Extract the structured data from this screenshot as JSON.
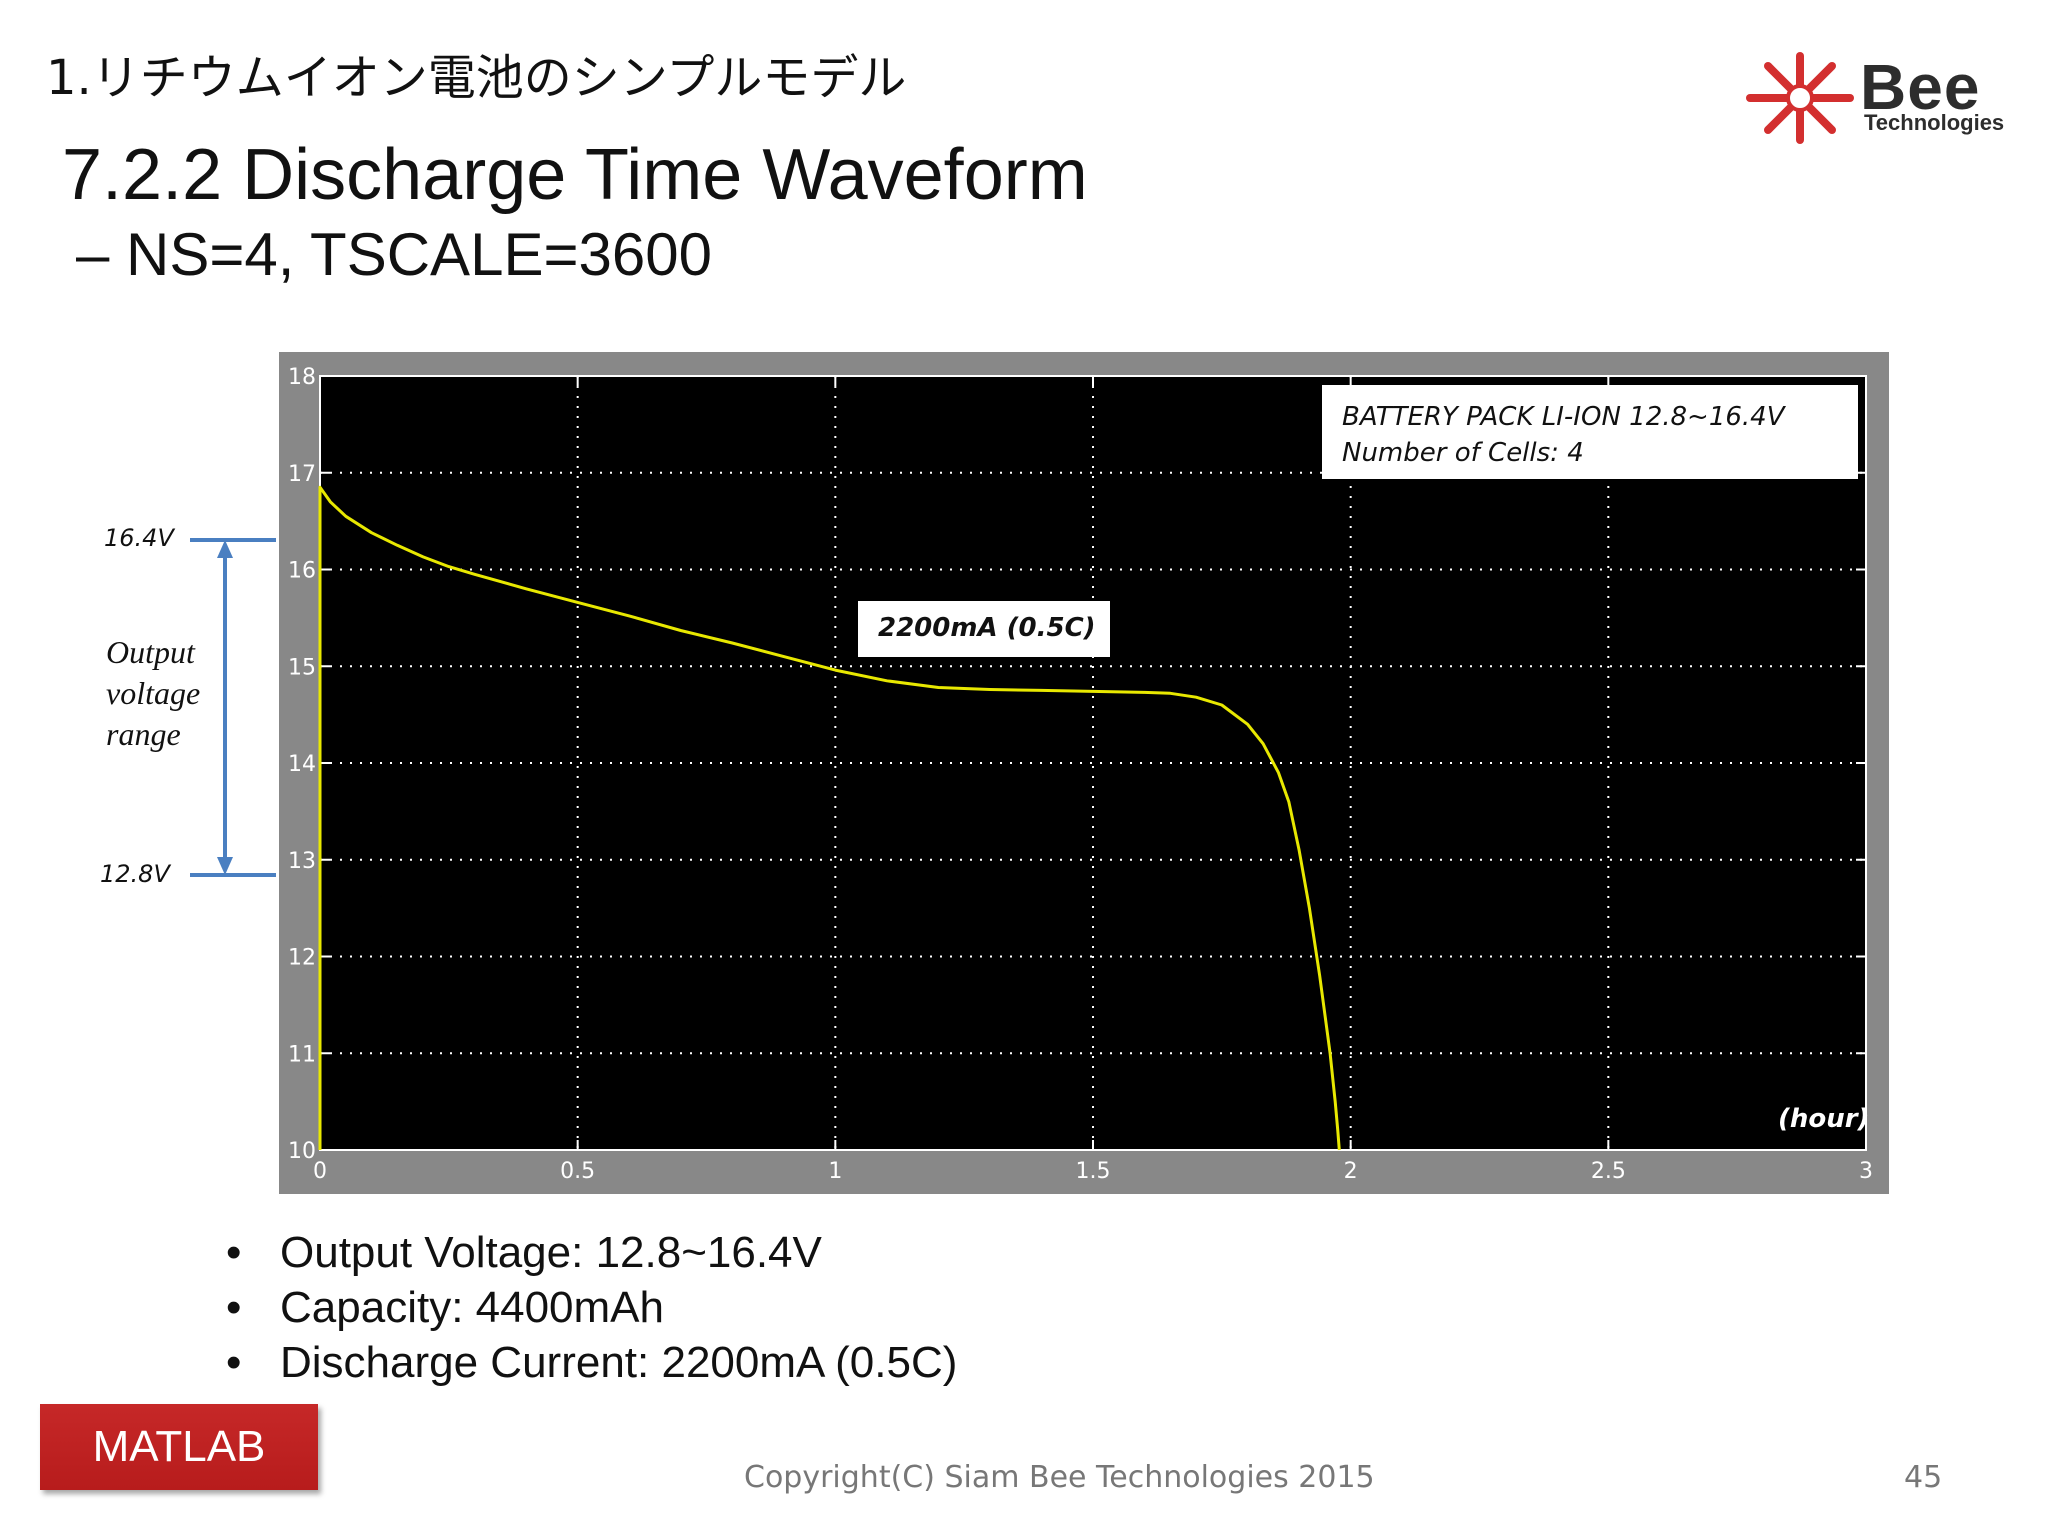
{
  "slide": {
    "section_header": "1.リチウムイオン電池のシンプルモデル",
    "title": "7.2.2 Discharge Time Waveform",
    "subtitle": "– NS=4, TSCALE=3600",
    "logo": {
      "brand": "Bee",
      "tagline": "Technologies",
      "color": "#d32f2f"
    },
    "bullets": [
      "Output Voltage:  12.8~16.4V",
      "Capacity: 4400mAh",
      "Discharge Current: 2200mA (0.5C)"
    ],
    "badge": "MATLAB",
    "footer": {
      "copyright": "Copyright(C) Siam Bee Technologies 2015",
      "page": "45"
    },
    "range_annotation": {
      "top_label": "16.4V",
      "bottom_label": "12.8V",
      "description": [
        "Output",
        "voltage",
        "range"
      ],
      "color": "#4a7fc1"
    }
  },
  "chart_data": {
    "type": "line",
    "title": "",
    "xlabel": "(hour)",
    "ylabel": "",
    "xlim": [
      0,
      3
    ],
    "ylim": [
      10,
      18
    ],
    "xticks": [
      0,
      0.5,
      1,
      1.5,
      2,
      2.5,
      3
    ],
    "xtick_labels": [
      "0",
      "0.5",
      "1",
      "1.5",
      "2",
      "2.5",
      "3"
    ],
    "yticks": [
      10,
      11,
      12,
      13,
      14,
      15,
      16,
      17,
      18
    ],
    "ytick_labels": [
      "10",
      "11",
      "12",
      "13",
      "14",
      "15",
      "16",
      "17",
      "18"
    ],
    "grid": true,
    "background": "#000000",
    "line_color": "#e8e800",
    "annotations": {
      "legend_line1": "BATTERY PACK LI-ION 12.8~16.4V",
      "legend_line2": "Number of Cells: 4",
      "current_label": "2200mA (0.5C)"
    },
    "series": [
      {
        "x": [
          0,
          0,
          0.02,
          0.05,
          0.1,
          0.15,
          0.2,
          0.25,
          0.3,
          0.4,
          0.5,
          0.6,
          0.7,
          0.8,
          0.9,
          1.0,
          1.1,
          1.2,
          1.3,
          1.4,
          1.5,
          1.6,
          1.65,
          1.7,
          1.75,
          1.8,
          1.83,
          1.86,
          1.88,
          1.9,
          1.92,
          1.94,
          1.96,
          1.97,
          1.975,
          1.978
        ],
        "y": [
          10,
          16.85,
          16.7,
          16.55,
          16.38,
          16.25,
          16.13,
          16.03,
          15.95,
          15.8,
          15.66,
          15.52,
          15.37,
          15.24,
          15.1,
          14.96,
          14.85,
          14.78,
          14.76,
          14.75,
          14.74,
          14.73,
          14.72,
          14.68,
          14.6,
          14.4,
          14.2,
          13.9,
          13.6,
          13.1,
          12.5,
          11.8,
          11.0,
          10.5,
          10.2,
          10.0
        ]
      }
    ]
  }
}
